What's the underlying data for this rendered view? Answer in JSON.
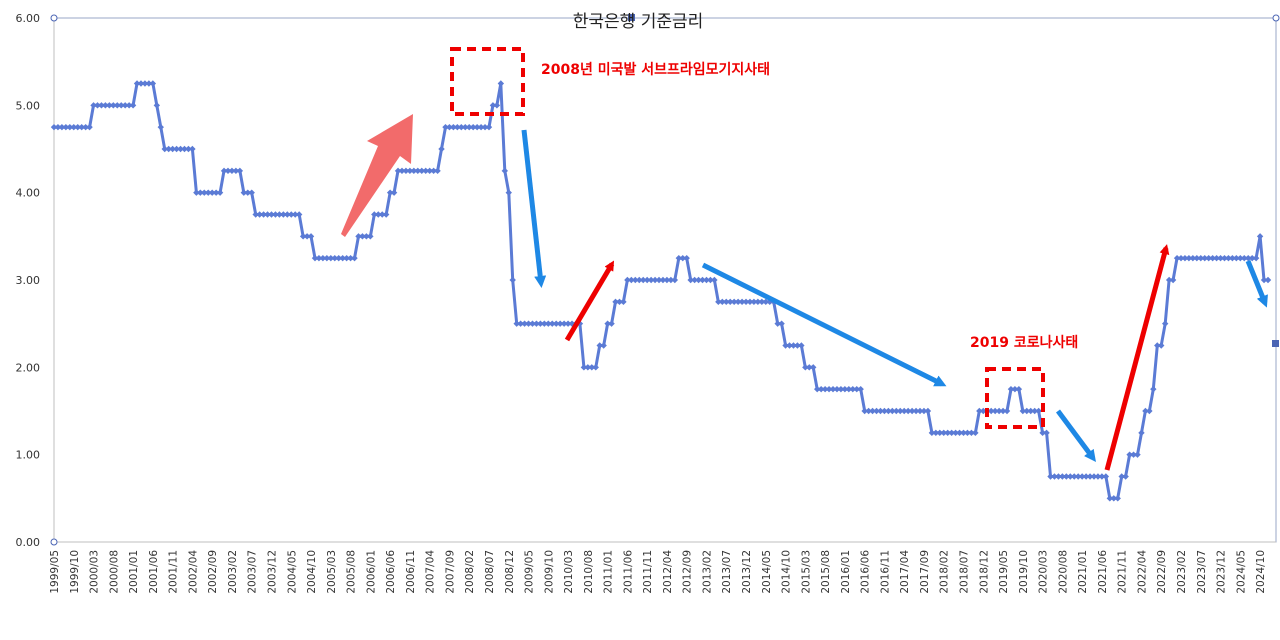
{
  "chart_data": {
    "type": "line",
    "title": "한국은행 기준금리",
    "ylim": [
      0,
      6
    ],
    "y_ticks": [
      "0.00",
      "1.00",
      "2.00",
      "3.00",
      "4.00",
      "5.00",
      "6.00"
    ],
    "x_tick_labels": [
      "1999/05",
      "1999/10",
      "2000/03",
      "2000/08",
      "2001/01",
      "2001/06",
      "2001/11",
      "2002/04",
      "2002/09",
      "2003/02",
      "2003/07",
      "2003/12",
      "2004/05",
      "2004/10",
      "2005/03",
      "2005/08",
      "2006/01",
      "2006/06",
      "2006/11",
      "2007/04",
      "2007/09",
      "2008/02",
      "2008/07",
      "2008/12",
      "2009/05",
      "2009/10",
      "2010/03",
      "2010/08",
      "2011/01",
      "2011/06",
      "2011/11",
      "2012/04",
      "2012/09",
      "2013/02",
      "2013/07",
      "2013/12",
      "2014/05",
      "2014/10",
      "2015/03",
      "2015/08",
      "2016/01",
      "2016/06",
      "2016/11",
      "2017/04",
      "2017/09",
      "2018/02",
      "2018/07",
      "2018/12",
      "2019/05",
      "2019/10",
      "2020/03",
      "2020/08",
      "2021/01",
      "2021/06",
      "2021/11",
      "2022/04",
      "2022/09",
      "2023/02",
      "2023/07",
      "2023/12",
      "2024/05",
      "2024/10"
    ],
    "grid": false,
    "line_color": "#5b7bd5",
    "series": [
      {
        "x": [
          "1999/05",
          "2000/01",
          "2000/03",
          "2000/10",
          "2001/02",
          "2001/07",
          "2001/08",
          "2001/09",
          "2002/05",
          "2002/12",
          "2003/05",
          "2003/08",
          "2004/08",
          "2004/11",
          "2005/10",
          "2006/02",
          "2006/06",
          "2006/08",
          "2007/07",
          "2007/08",
          "2008/08",
          "2008/10",
          "2008/11",
          "2008/12",
          "2009/01",
          "2009/02",
          "2010/07",
          "2010/11",
          "2011/01",
          "2011/03",
          "2011/06",
          "2012/07",
          "2012/10",
          "2013/05",
          "2014/08",
          "2014/10",
          "2015/03",
          "2015/06",
          "2016/06",
          "2017/11",
          "2018/11",
          "2019/07",
          "2019/10",
          "2020/03",
          "2020/05",
          "2021/08",
          "2021/11",
          "2022/01",
          "2022/04",
          "2022/05",
          "2022/07",
          "2022/08",
          "2022/10",
          "2022/11",
          "2023/01",
          "2024/10",
          "2024/11"
        ],
        "values": [
          4.75,
          4.75,
          5.0,
          5.0,
          5.25,
          5.0,
          4.75,
          4.5,
          4.0,
          4.25,
          4.0,
          3.75,
          3.5,
          3.25,
          3.5,
          3.75,
          4.0,
          4.25,
          4.5,
          4.75,
          5.0,
          5.25,
          4.25,
          4.0,
          3.0,
          2.5,
          2.0,
          2.25,
          2.5,
          2.75,
          3.0,
          3.25,
          3.0,
          2.75,
          2.5,
          2.25,
          2.0,
          1.75,
          1.5,
          1.25,
          1.5,
          1.75,
          1.5,
          1.25,
          0.75,
          0.5,
          0.75,
          1.0,
          1.25,
          1.5,
          1.75,
          2.25,
          2.5,
          3.0,
          3.25,
          3.5,
          3.0
        ]
      }
    ],
    "annotations": [
      {
        "text": "2008년 미국발 서브프라임모기지사태",
        "color": "#ee0000"
      },
      {
        "text": "2019 코로나사태",
        "color": "#ee0000"
      }
    ],
    "arrow_colors": {
      "up": "#ee0000",
      "up_faded": "#f26b6b",
      "down": "#1e88e5"
    }
  }
}
